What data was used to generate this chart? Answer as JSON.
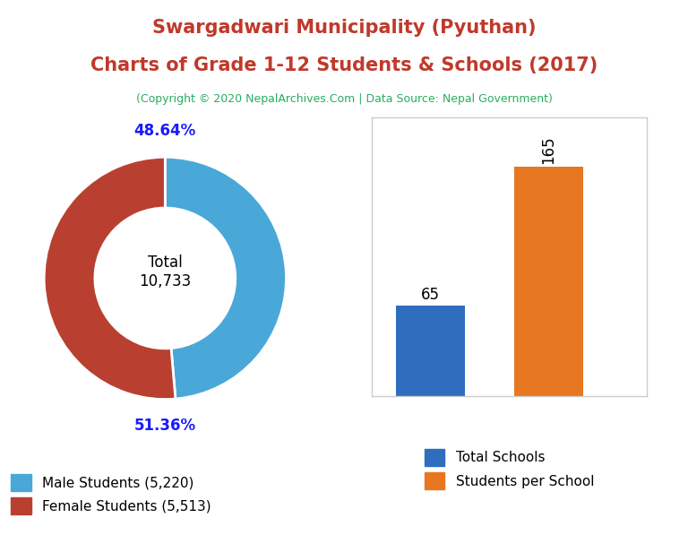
{
  "title_line1": "Swargadwari Municipality (Pyuthan)",
  "title_line2": "Charts of Grade 1-12 Students & Schools (2017)",
  "subtitle": "(Copyright © 2020 NepalArchives.Com | Data Source: Nepal Government)",
  "title_color": "#c0392b",
  "subtitle_color": "#27ae60",
  "donut_values": [
    5220,
    5513
  ],
  "donut_colors": [
    "#4aa8d8",
    "#b94030"
  ],
  "donut_labels": [
    "48.64%",
    "51.36%"
  ],
  "donut_label_color": "#1a1aff",
  "donut_center_text": "Total\n10,733",
  "legend_donut": [
    "Male Students (5,220)",
    "Female Students (5,513)"
  ],
  "bar_values": [
    65,
    165
  ],
  "bar_colors": [
    "#2f6dbf",
    "#e87722"
  ],
  "bar_labels": [
    "65",
    "165"
  ],
  "legend_bar": [
    "Total Schools",
    "Students per School"
  ],
  "background_color": "#ffffff"
}
